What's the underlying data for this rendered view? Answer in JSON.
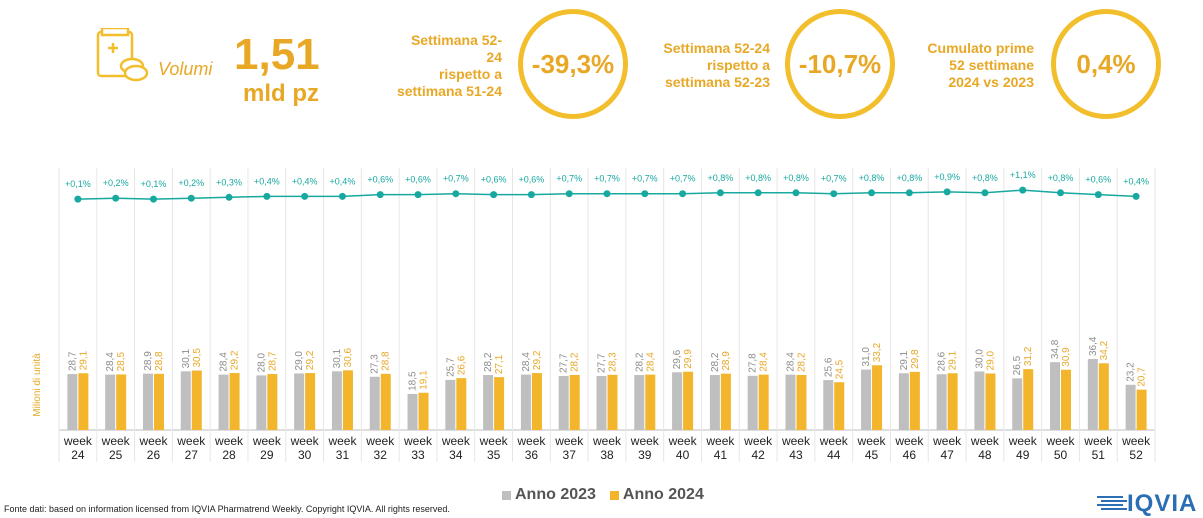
{
  "header": {
    "volumi_label": "Volumi",
    "volumi_value": "1,51",
    "volumi_unit": "mld pz",
    "kpi1_text": "Settimana 52-\n24\nrispetto a\nsettimana 51-24",
    "kpi1_value": "-39,3%",
    "kpi2_text": "Settimana 52-24\nrispetto a\nsettimana 52-23",
    "kpi2_value": "-10,7%",
    "kpi3_text": "Cumulato prime\n52 settimane\n2024 vs 2023",
    "kpi3_value": "0,4%"
  },
  "colors": {
    "accent": "#E8A826",
    "series_2023": "#BFBFBF",
    "series_2024": "#F2B52B",
    "line": "#17A8A0"
  },
  "chart_data": {
    "type": "bar",
    "ylabel": "Milioni di unità",
    "categories": [
      "week\n24",
      "week\n25",
      "week\n26",
      "week\n27",
      "week\n28",
      "week\n29",
      "week\n30",
      "week\n31",
      "week\n32",
      "week\n33",
      "week\n34",
      "week\n35",
      "week\n36",
      "week\n37",
      "week\n38",
      "week\n39",
      "week\n40",
      "week\n41",
      "week\n42",
      "week\n43",
      "week\n44",
      "week\n45",
      "week\n46",
      "week\n47",
      "week\n48",
      "week\n49",
      "week\n50",
      "week\n51",
      "week\n52"
    ],
    "series": [
      {
        "name": "Anno 2023",
        "values": [
          28.7,
          28.4,
          28.9,
          30.1,
          28.4,
          28.0,
          29.0,
          30.1,
          27.3,
          18.5,
          25.7,
          28.2,
          28.4,
          27.7,
          27.7,
          28.2,
          29.6,
          28.2,
          27.8,
          28.4,
          25.6,
          31.0,
          29.1,
          28.6,
          30.0,
          26.5,
          34.8,
          36.4,
          23.2
        ]
      },
      {
        "name": "Anno 2024",
        "values": [
          29.1,
          28.5,
          28.8,
          30.5,
          29.2,
          28.7,
          29.2,
          30.6,
          28.8,
          19.1,
          26.6,
          27.1,
          29.2,
          28.2,
          28.3,
          28.4,
          29.9,
          28.9,
          28.4,
          28.2,
          24.5,
          33.2,
          29.8,
          29.1,
          29.0,
          31.2,
          30.9,
          34.2,
          20.7
        ]
      }
    ],
    "bar_labels_2023": [
      "28,7",
      "28,4",
      "28,9",
      "30,1",
      "28,4",
      "28,0",
      "29,0",
      "30,1",
      "27,3",
      "18,5",
      "25,7",
      "28,2",
      "28,4",
      "27,7",
      "27,7",
      "28,2",
      "29,6",
      "28,2",
      "27,8",
      "28,4",
      "25,6",
      "31,0",
      "29,1",
      "28,6",
      "30,0",
      "26,5",
      "34,8",
      "36,4",
      "23,2"
    ],
    "bar_labels_2024": [
      "29,1",
      "28,5",
      "28,8",
      "30,5",
      "29,2",
      "28,7",
      "29,2",
      "30,6",
      "28,8",
      "19,1",
      "26,6",
      "27,1",
      "29,2",
      "28,2",
      "28,3",
      "28,4",
      "29,9",
      "28,9",
      "28,4",
      "28,2",
      "24,5",
      "33,2",
      "29,8",
      "29,1",
      "29,0",
      "31,2",
      "30,9",
      "34,2",
      "20,7"
    ],
    "cumulative_pct": [
      0.1,
      0.2,
      0.1,
      0.2,
      0.3,
      0.4,
      0.4,
      0.4,
      0.6,
      0.6,
      0.7,
      0.6,
      0.6,
      0.7,
      0.7,
      0.7,
      0.7,
      0.8,
      0.8,
      0.8,
      0.7,
      0.8,
      0.8,
      0.9,
      0.8,
      1.1,
      0.8,
      0.6,
      0.4
    ],
    "cumulative_labels": [
      "+0,1%",
      "+0,2%",
      "+0,1%",
      "+0,2%",
      "+0,3%",
      "+0,4%",
      "+0,4%",
      "+0,4%",
      "+0,6%",
      "+0,6%",
      "+0,7%",
      "+0,6%",
      "+0,6%",
      "+0,7%",
      "+0,7%",
      "+0,7%",
      "+0,7%",
      "+0,8%",
      "+0,8%",
      "+0,8%",
      "+0,7%",
      "+0,8%",
      "+0,8%",
      "+0,9%",
      "+0,8%",
      "+1,1%",
      "+0,8%",
      "+0,6%",
      "+0,4%"
    ],
    "ylim": [
      0,
      60
    ],
    "legend_position": "bottom"
  },
  "footer": {
    "source": "Fonte dati: based on information licensed from IQVIA Pharmatrend Weekly. Copyright IQVIA. All rights reserved.",
    "logo": "IQVIA"
  }
}
